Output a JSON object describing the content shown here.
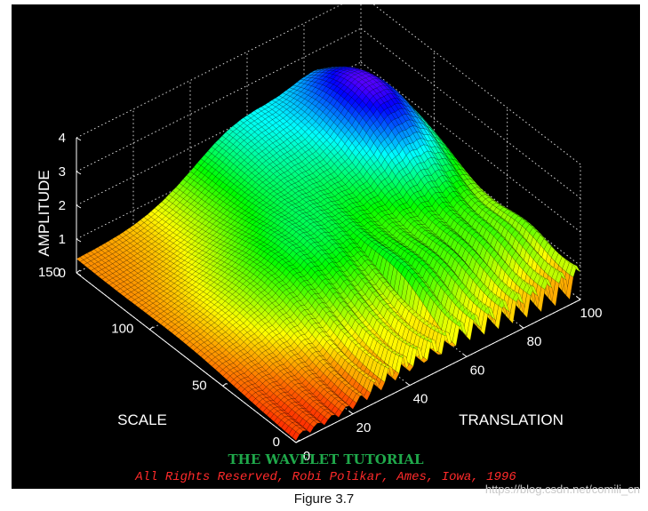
{
  "chart_data": {
    "type": "surface",
    "title": "THE WAVELET TUTORIAL",
    "subtitle": "All Rights Reserved, Robi Polikar, Ames, Iowa, 1996",
    "xlabel": "TRANSLATION",
    "ylabel": "SCALE",
    "zlabel": "AMPLITUDE",
    "xlim": [
      0,
      100
    ],
    "ylim": [
      0,
      150
    ],
    "zlim": [
      0,
      4
    ],
    "xticks": [
      "0",
      "20",
      "40",
      "60",
      "80",
      "100"
    ],
    "yticks": [
      "0",
      "50",
      "100",
      "150"
    ],
    "zticks": [
      "0",
      "1",
      "2",
      "3",
      "4"
    ],
    "grid": true,
    "colormap": "hsv",
    "background": "#000000",
    "surface_samples": [
      {
        "scale": 1,
        "translation": 0,
        "amplitude": 0.9
      },
      {
        "scale": 1,
        "translation": 50,
        "amplitude": 0.8
      },
      {
        "scale": 1,
        "translation": 100,
        "amplitude": 0.8
      },
      {
        "scale": 20,
        "translation": 70,
        "amplitude": 0.9
      },
      {
        "scale": 50,
        "translation": 0,
        "amplitude": 0.3
      },
      {
        "scale": 50,
        "translation": 100,
        "amplitude": 2.6
      },
      {
        "scale": 100,
        "translation": 50,
        "amplitude": 1.2
      },
      {
        "scale": 150,
        "translation": 0,
        "amplitude": 0.1
      },
      {
        "scale": 150,
        "translation": 90,
        "amplitude": 3.3
      }
    ]
  },
  "figure": {
    "caption": "Figure 3.7",
    "watermark": "https://blog.csdn.net/comili_cn"
  },
  "colors": {
    "title": "#1fa84a",
    "subtitle": "#ff2a2a",
    "axes": "#ffffff"
  }
}
